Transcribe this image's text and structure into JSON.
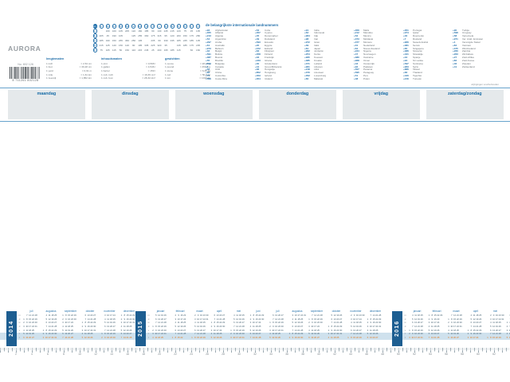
{
  "brand": {
    "logo": "AURORA",
    "article": "No. 802 128",
    "barcode_digits": "8 711261 802128"
  },
  "km_table": {
    "corner": "km",
    "columns": [
      "A",
      "An",
      "Ar",
      "Br",
      "Bx",
      "E",
      "En",
      "G",
      "H",
      "L",
      "Lk",
      "M",
      "N",
      "R",
      "U",
      "Z"
    ],
    "rows": [
      {
        "label": "A",
        "values": [
          "",
          "160",
          "100",
          "105",
          "205",
          "122",
          "160",
          "185",
          "60",
          "140",
          "245",
          "215",
          "120",
          "75",
          "45",
          "105"
        ]
      },
      {
        "label": "Bx",
        "values": [
          "205",
          "45",
          "190",
          "105",
          "",
          "125",
          "255",
          "360",
          "175",
          "315",
          "95",
          "120",
          "200",
          "150",
          "175",
          "280"
        ]
      },
      {
        "label": "G",
        "values": [
          "185",
          "340",
          "150",
          "265",
          "360",
          "250",
          "145",
          "",
          "235",
          "60",
          "330",
          "335",
          "185",
          "245",
          "185",
          "105"
        ]
      },
      {
        "label": "M",
        "values": [
          "215",
          "125",
          "140",
          "150",
          "120",
          "90",
          "195",
          "335",
          "225",
          "320",
          "35",
          "",
          "135",
          "185",
          "175",
          "235"
        ]
      },
      {
        "label": "R",
        "values": [
          "75",
          "105",
          "115",
          "50",
          "150",
          "110",
          "215",
          "245",
          "25",
          "200",
          "195",
          "185",
          "115",
          "",
          "60",
          "160"
        ]
      }
    ]
  },
  "conversions": {
    "groups": [
      {
        "title": "lengtematen",
        "rows": [
          [
            "1 inch",
            "= 2,54 cm"
          ],
          [
            "1 foot",
            "= 30,48 cm"
          ],
          [
            "1 yard",
            "= 0,91 m"
          ],
          [
            "1 mile",
            "= 1,61 km"
          ],
          [
            "1 zeemijl",
            "= 1,852 km"
          ]
        ]
      },
      {
        "title": "inhoudsmaten",
        "rows": [
          [
            "1 pint",
            "= 0,568 l"
          ],
          [
            "1 gallon",
            "= 4,546 l"
          ],
          [
            "1 barrel",
            "= 159 l"
          ],
          [
            "1 cub. inch",
            "= 16,39 cm³"
          ],
          [
            "1 cub. foot",
            "= 28,32 dm³"
          ]
        ]
      },
      {
        "title": "gewichten",
        "rows": [
          [
            "1 ounce",
            "= 28,35 g"
          ],
          [
            "1 pound",
            "= 453,6 g"
          ],
          [
            "1 stone",
            "= 6,35 kg"
          ],
          [
            "1 cwt",
            "= 50,8 kg"
          ],
          [
            "1 ton",
            "= 1016 kg"
          ]
        ]
      }
    ]
  },
  "intl": {
    "title": "de belangrijkste internationale landnummers",
    "note": "wijzigingen voorbehouden",
    "groups": [
      [
        {
          "code": "+93",
          "name": "Afghanistan"
        },
        {
          "code": "+355",
          "name": "Albanië"
        },
        {
          "code": "+213",
          "name": "Algerije"
        },
        {
          "code": "+54",
          "name": "Argentinië"
        },
        {
          "code": "+297",
          "name": "Aruba"
        },
        {
          "code": "+61",
          "name": "Australië"
        },
        {
          "code": "+973",
          "name": "Bahrein"
        },
        {
          "code": "+32",
          "name": "België"
        },
        {
          "code": "+591",
          "name": "Bolivia"
        },
        {
          "code": "+387",
          "name": "Bosnië"
        },
        {
          "code": "+55",
          "name": "Brazilië"
        },
        {
          "code": "+359",
          "name": "Bulgarije"
        },
        {
          "code": "+1",
          "name": "Canada"
        },
        {
          "code": "+56",
          "name": "Chili"
        },
        {
          "code": "+86",
          "name": "China"
        },
        {
          "code": "+57",
          "name": "Colombia"
        },
        {
          "code": "+506",
          "name": "Costa Rica"
        }
      ],
      [
        {
          "code": "+53",
          "name": "Cuba"
        },
        {
          "code": "+357",
          "name": "Cyprus"
        },
        {
          "code": "+45",
          "name": "Denemarken"
        },
        {
          "code": "+49",
          "name": "Duitsland"
        },
        {
          "code": "+593",
          "name": "Ecuador"
        },
        {
          "code": "+20",
          "name": "Egypte"
        },
        {
          "code": "+372",
          "name": "Estland"
        },
        {
          "code": "+63",
          "name": "Filipijnen"
        },
        {
          "code": "+358",
          "name": "Finland"
        },
        {
          "code": "+33",
          "name": "Frankrijk"
        },
        {
          "code": "+233",
          "name": "Ghana"
        },
        {
          "code": "+30",
          "name": "Griekenland"
        },
        {
          "code": "+44",
          "name": "Groot-Brittannië"
        },
        {
          "code": "+36",
          "name": "Hongarije"
        },
        {
          "code": "+852",
          "name": "Hongkong"
        },
        {
          "code": "+353",
          "name": "Ierland"
        },
        {
          "code": "+354",
          "name": "IJsland"
        }
      ],
      [
        {
          "code": "+91",
          "name": "India"
        },
        {
          "code": "+62",
          "name": "Indonesië"
        },
        {
          "code": "+964",
          "name": "Irak"
        },
        {
          "code": "+98",
          "name": "Iran"
        },
        {
          "code": "+972",
          "name": "Israël"
        },
        {
          "code": "+39",
          "name": "Italië"
        },
        {
          "code": "+81",
          "name": "Japan"
        },
        {
          "code": "+962",
          "name": "Jordanië"
        },
        {
          "code": "+254",
          "name": "Kenia"
        },
        {
          "code": "+965",
          "name": "Koeweit"
        },
        {
          "code": "+385",
          "name": "Kroatië"
        },
        {
          "code": "+371",
          "name": "Letland"
        },
        {
          "code": "+961",
          "name": "Libanon"
        },
        {
          "code": "+218",
          "name": "Libië"
        },
        {
          "code": "+370",
          "name": "Litouwen"
        },
        {
          "code": "+352",
          "name": "Luxemburg"
        },
        {
          "code": "+60",
          "name": "Maleisië"
        }
      ],
      [
        {
          "code": "+356",
          "name": "Malta"
        },
        {
          "code": "+212",
          "name": "Marokko"
        },
        {
          "code": "+52",
          "name": "Mexico"
        },
        {
          "code": "+373",
          "name": "Moldavië"
        },
        {
          "code": "+377",
          "name": "Monaco"
        },
        {
          "code": "+31",
          "name": "Nederland"
        },
        {
          "code": "+64",
          "name": "Nieuw-Zeeland"
        },
        {
          "code": "+234",
          "name": "Nigeria"
        },
        {
          "code": "+47",
          "name": "Noorwegen"
        },
        {
          "code": "+380",
          "name": "Oekraïne"
        },
        {
          "code": "+968",
          "name": "Oman"
        },
        {
          "code": "+43",
          "name": "Oostenrijk"
        },
        {
          "code": "+92",
          "name": "Pakistan"
        },
        {
          "code": "+507",
          "name": "Panama"
        },
        {
          "code": "+595",
          "name": "Paraguay"
        },
        {
          "code": "+51",
          "name": "Peru"
        },
        {
          "code": "+48",
          "name": "Polen"
        }
      ],
      [
        {
          "code": "+351",
          "name": "Portugal"
        },
        {
          "code": "+974",
          "name": "Qatar"
        },
        {
          "code": "+40",
          "name": "Roemenië"
        },
        {
          "code": "+7",
          "name": "Rusland"
        },
        {
          "code": "+966",
          "name": "Saoedi-Arabië"
        },
        {
          "code": "+381",
          "name": "Servië"
        },
        {
          "code": "+65",
          "name": "Singapore"
        },
        {
          "code": "+386",
          "name": "Slovenië"
        },
        {
          "code": "+421",
          "name": "Slowakije"
        },
        {
          "code": "+34",
          "name": "Spanje"
        },
        {
          "code": "+94",
          "name": "Sri Lanka"
        },
        {
          "code": "+597",
          "name": "Suriname"
        },
        {
          "code": "+963",
          "name": "Syrië"
        },
        {
          "code": "+886",
          "name": "Taiwan"
        },
        {
          "code": "+66",
          "name": "Thailand"
        },
        {
          "code": "+420",
          "name": "Tsjechië"
        },
        {
          "code": "+216",
          "name": "Tunesië"
        }
      ],
      [
        {
          "code": "+90",
          "name": "Turkije"
        },
        {
          "code": "+598",
          "name": "Uruguay"
        },
        {
          "code": "+58",
          "name": "Venezuela"
        },
        {
          "code": "+971",
          "name": "Ver. Arab. Emiraten"
        },
        {
          "code": "+1",
          "name": "Verenigde Staten"
        },
        {
          "code": "+84",
          "name": "Vietnam"
        },
        {
          "code": "+375",
          "name": "Wit-Rusland"
        },
        {
          "code": "+260",
          "name": "Zambia"
        },
        {
          "code": "+263",
          "name": "Zimbabwe"
        },
        {
          "code": "+27",
          "name": "Zuid-Afrika"
        },
        {
          "code": "+82",
          "name": "Zuid-Korea"
        },
        {
          "code": "+46",
          "name": "Zweden"
        },
        {
          "code": "+41",
          "name": "Zwitserland"
        }
      ]
    ]
  },
  "weekdays": [
    "maandag",
    "dinsdag",
    "woensdag",
    "donderdag",
    "vrijdag",
    "zaterdag/zondag"
  ],
  "calendar": {
    "day_initials": [
      "m",
      "d",
      "w",
      "d",
      "v",
      "z",
      "z"
    ],
    "blocks": [
      {
        "year": "2014",
        "months": [
          {
            "name": "juli",
            "start": 1,
            "days": 31
          },
          {
            "name": "augustus",
            "start": 4,
            "days": 31
          },
          {
            "name": "september",
            "start": 0,
            "days": 30
          },
          {
            "name": "oktober",
            "start": 2,
            "days": 31
          },
          {
            "name": "november",
            "start": 5,
            "days": 30
          },
          {
            "name": "december",
            "start": 0,
            "days": 31
          }
        ]
      },
      {
        "year": "2015",
        "months": [
          {
            "name": "januari",
            "start": 3,
            "days": 31
          },
          {
            "name": "februari",
            "start": 6,
            "days": 28
          },
          {
            "name": "maart",
            "start": 6,
            "days": 31
          },
          {
            "name": "april",
            "start": 2,
            "days": 30
          },
          {
            "name": "mei",
            "start": 4,
            "days": 31
          },
          {
            "name": "juni",
            "start": 0,
            "days": 30
          },
          {
            "name": "juli",
            "start": 2,
            "days": 31
          },
          {
            "name": "augustus",
            "start": 5,
            "days": 31
          },
          {
            "name": "september",
            "start": 1,
            "days": 30
          },
          {
            "name": "oktober",
            "start": 3,
            "days": 31
          },
          {
            "name": "november",
            "start": 6,
            "days": 30
          },
          {
            "name": "december",
            "start": 1,
            "days": 31
          }
        ]
      },
      {
        "year": "2016",
        "months": [
          {
            "name": "januari",
            "start": 4,
            "days": 31
          },
          {
            "name": "februari",
            "start": 0,
            "days": 29
          },
          {
            "name": "maart",
            "start": 1,
            "days": 31
          },
          {
            "name": "april",
            "start": 4,
            "days": 30
          },
          {
            "name": "mei",
            "start": 6,
            "days": 31
          },
          {
            "name": "juni",
            "start": 2,
            "days": 30
          }
        ]
      }
    ]
  },
  "ruler": {
    "numbers": [
      2,
      4,
      6,
      8,
      10,
      12,
      14,
      16,
      18,
      20,
      22,
      24,
      26,
      28,
      30,
      32,
      34,
      36,
      38,
      40,
      42,
      44,
      46,
      48,
      50,
      52,
      54,
      56,
      58,
      60,
      62
    ]
  }
}
